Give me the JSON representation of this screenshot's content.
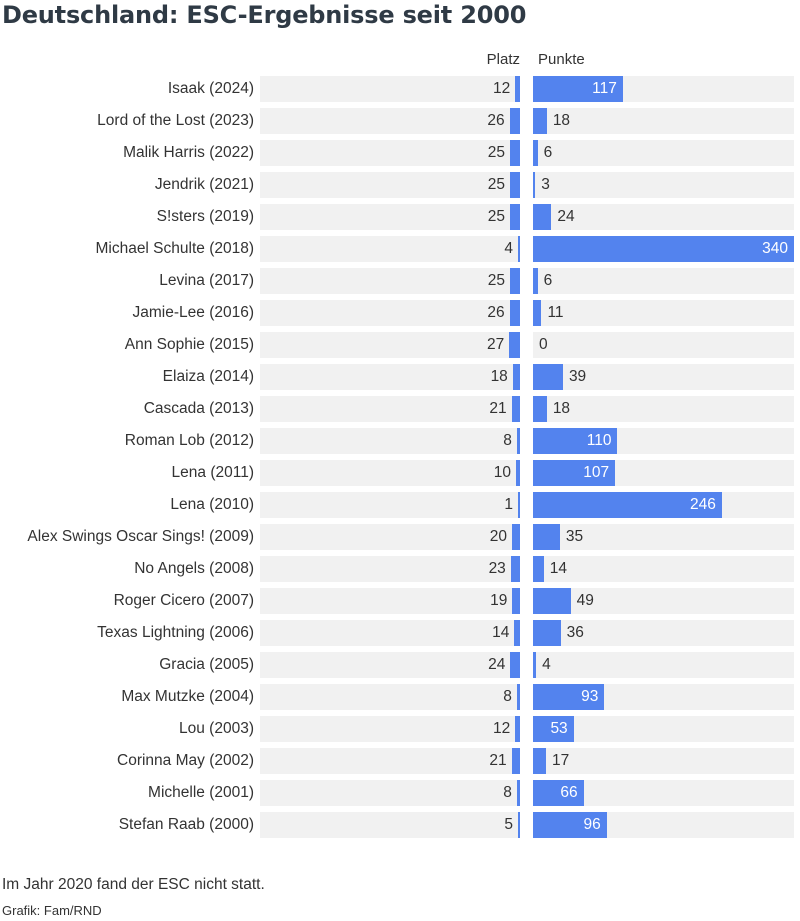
{
  "title": "Deutschland: ESC-Ergebnisse seit 2000",
  "columns": {
    "platz": "Platz",
    "punkte": "Punkte"
  },
  "note": "Im Jahr 2020 fand der ESC nicht statt.",
  "source": "Grafik: Fam/RND",
  "colors": {
    "bar": "#5383ee",
    "row_background": "#f1f1f1"
  },
  "chart_data": {
    "type": "bar",
    "orientation": "horizontal",
    "categories": [
      "Isaak (2024)",
      "Lord of the Lost (2023)",
      "Malik Harris (2022)",
      "Jendrik (2021)",
      "S!sters (2019)",
      "Michael Schulte (2018)",
      "Levina (2017)",
      "Jamie-Lee (2016)",
      "Ann Sophie (2015)",
      "Elaiza (2014)",
      "Cascada (2013)",
      "Roman Lob (2012)",
      "Lena (2011)",
      "Lena (2010)",
      "Alex Swings Oscar Sings! (2009)",
      "No Angels (2008)",
      "Roger Cicero (2007)",
      "Texas Lightning (2006)",
      "Gracia (2005)",
      "Max Mutzke (2004)",
      "Lou (2003)",
      "Corinna May (2002)",
      "Michelle (2001)",
      "Stefan Raab (2000)"
    ],
    "series": [
      {
        "name": "Platz",
        "values": [
          12,
          26,
          25,
          25,
          25,
          4,
          25,
          26,
          27,
          18,
          21,
          8,
          10,
          1,
          20,
          23,
          19,
          14,
          24,
          8,
          12,
          21,
          8,
          5
        ]
      },
      {
        "name": "Punkte",
        "values": [
          117,
          18,
          6,
          3,
          24,
          340,
          6,
          11,
          0,
          39,
          18,
          110,
          107,
          246,
          35,
          14,
          49,
          36,
          4,
          93,
          53,
          17,
          66,
          96
        ]
      }
    ]
  }
}
